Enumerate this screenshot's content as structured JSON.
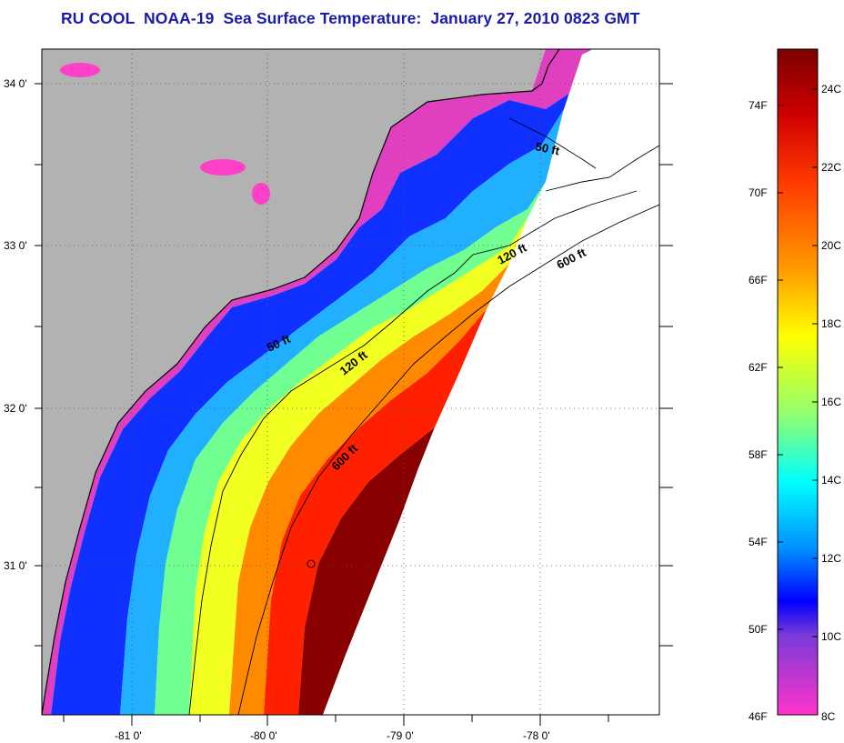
{
  "title": "RU COOL  NOAA-19  Sea Surface Temperature:  January 27, 2010 0823 GMT",
  "map": {
    "lat_labels": [
      "34 0'",
      "33 0'",
      "32 0'",
      "31 0'"
    ],
    "lon_labels": [
      "-81 0'",
      "-80 0'",
      "-79 0'",
      "-78 0'"
    ],
    "contours": {
      "c50_top": "50 ft",
      "c50_mid": "50 ft",
      "c120_top": "120 ft",
      "c120_mid": "120 ft",
      "c600_top": "600 ft",
      "c600_mid": "600 ft"
    }
  },
  "colorbar": {
    "fahrenheit_labels": [
      "74F",
      "70F",
      "66F",
      "62F",
      "58F",
      "54F",
      "50F",
      "46F"
    ],
    "celsius_labels": [
      "24C",
      "22C",
      "20C",
      "18C",
      "16C",
      "14C",
      "12C",
      "10C",
      "8C"
    ],
    "colors": {
      "top": "#800000",
      "red": "#ff1a00",
      "orange": "#ff8000",
      "yellow": "#ffff00",
      "green": "#80ff80",
      "cyan": "#00ffff",
      "blue": "#0050ff",
      "deep_blue": "#0000ff",
      "purple": "#8a3ad9",
      "magenta": "#ff33cc",
      "bottom": "#ff33cc"
    }
  },
  "colors": {
    "land": "#b2b2b2",
    "no_data": "#ffffff",
    "title": "#1a1aa8"
  }
}
